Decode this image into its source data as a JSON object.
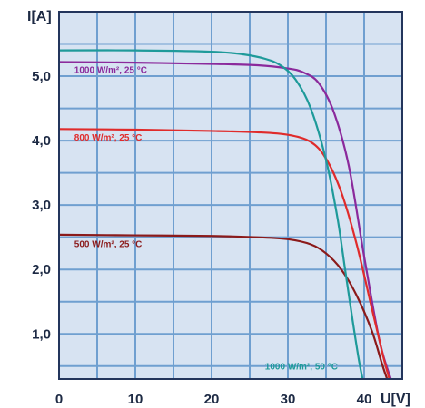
{
  "chart_data": {
    "type": "line",
    "ylabel": "I[A]",
    "xlabel": "U[V]",
    "xlim": [
      0,
      45
    ],
    "ylim": [
      0.3,
      6.0
    ],
    "xticks": [
      "0",
      "10",
      "20",
      "30",
      "40"
    ],
    "yticks": [
      "1,0",
      "2,0",
      "3,0",
      "4,0",
      "5,0"
    ],
    "grid": true,
    "colors": {
      "background": "#d7e3f2",
      "grid": "#6f9fd0",
      "frame": "#23355c",
      "text": "#1d2a44"
    },
    "series": [
      {
        "name": "1000 W/m², 25 °C",
        "color": "#8b2a9c",
        "label_pos": [
          2.0,
          5.05
        ],
        "x": [
          0,
          10,
          20,
          26,
          30,
          32,
          34,
          36,
          38,
          40,
          42,
          43.5
        ],
        "y": [
          5.22,
          5.21,
          5.19,
          5.17,
          5.12,
          5.06,
          4.9,
          4.45,
          3.6,
          2.2,
          0.9,
          0.3
        ]
      },
      {
        "name": "800 W/m², 25 °C",
        "color": "#e02b2b",
        "label_pos": [
          2.0,
          4.0
        ],
        "x": [
          0,
          10,
          20,
          26,
          30,
          33,
          35,
          37,
          39,
          41,
          42.5,
          43.3
        ],
        "y": [
          4.18,
          4.17,
          4.15,
          4.13,
          4.09,
          3.98,
          3.72,
          3.2,
          2.4,
          1.4,
          0.65,
          0.3
        ]
      },
      {
        "name": "500 W/m², 25 °C",
        "color": "#8b1a1a",
        "label_pos": [
          2.0,
          2.35
        ],
        "x": [
          0,
          10,
          20,
          26,
          30,
          33,
          35,
          37,
          39,
          41,
          42.3,
          43.0
        ],
        "y": [
          2.54,
          2.53,
          2.52,
          2.5,
          2.47,
          2.39,
          2.25,
          2.0,
          1.6,
          1.05,
          0.55,
          0.3
        ]
      },
      {
        "name": "1000 W/m², 50 °C",
        "color": "#1e9a9a",
        "label_pos": [
          27.0,
          0.45
        ],
        "x": [
          0,
          10,
          20,
          24,
          27,
          29,
          31,
          33,
          35,
          36.5,
          37.5,
          38.5,
          39.3,
          39.8
        ],
        "y": [
          5.4,
          5.4,
          5.38,
          5.34,
          5.27,
          5.17,
          4.95,
          4.5,
          3.7,
          2.8,
          2.0,
          1.2,
          0.6,
          0.3
        ]
      }
    ]
  }
}
